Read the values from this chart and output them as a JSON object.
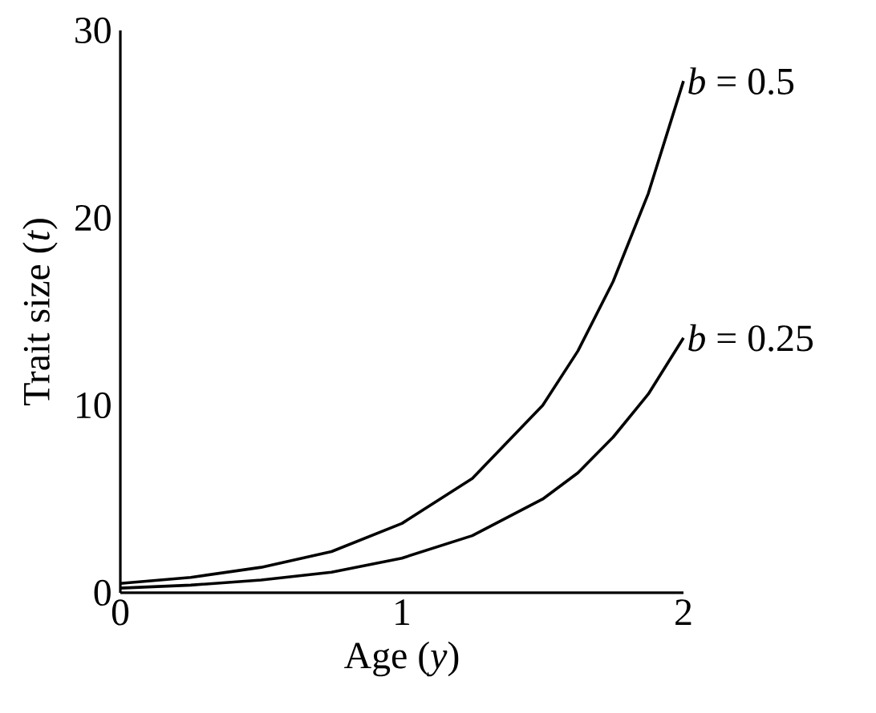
{
  "chart_data": {
    "type": "line",
    "xlabel": "Age (*y*)",
    "ylabel": "Trait size (*t*)",
    "xlim": [
      0,
      2
    ],
    "ylim": [
      0,
      30
    ],
    "xticks": [
      0,
      1,
      2
    ],
    "yticks": [
      0,
      10,
      20,
      30
    ],
    "x": [
      0,
      0.25,
      0.5,
      0.75,
      1,
      1.25,
      1.5,
      1.625,
      1.75,
      1.875,
      2
    ],
    "series": [
      {
        "name": "*b* = 0.5",
        "color": "#000000",
        "values": [
          0.5,
          0.82,
          1.36,
          2.2,
          3.7,
          6.1,
          10.0,
          12.9,
          16.6,
          21.3,
          27.3
        ]
      },
      {
        "name": "*b* = 0.25",
        "color": "#000000",
        "values": [
          0.25,
          0.41,
          0.68,
          1.1,
          1.85,
          3.05,
          5.0,
          6.4,
          8.3,
          10.6,
          13.6
        ]
      }
    ]
  }
}
